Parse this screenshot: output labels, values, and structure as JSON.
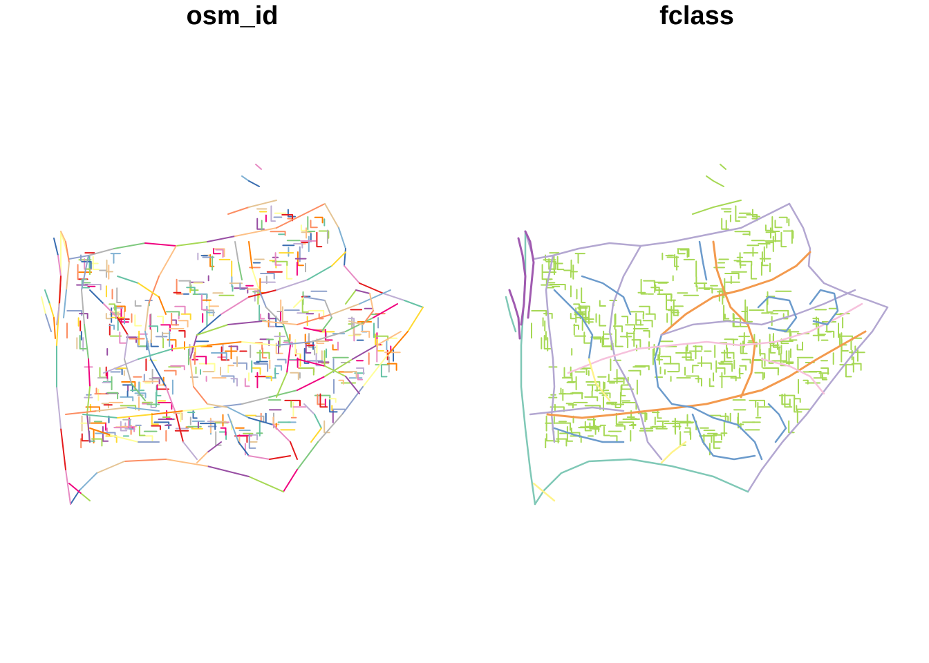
{
  "figure": {
    "panels": [
      {
        "id": "osm_id",
        "title": "osm_id",
        "coloring": "per-feature"
      },
      {
        "id": "fclass",
        "title": "fclass",
        "coloring": "by-class"
      }
    ]
  },
  "palette": {
    "osm_id_colors": [
      "#7fc97f",
      "#beaed4",
      "#fdc086",
      "#ffff99",
      "#386cb0",
      "#f0027f",
      "#66c2a5",
      "#fc8d62",
      "#8da0cb",
      "#e78ac3",
      "#a6d854",
      "#ffd92f",
      "#e5c494",
      "#b3b3b3",
      "#e41a1c",
      "#984ea3",
      "#ff7f00",
      "#80b1d3"
    ],
    "fclass_colors": {
      "residential": "#a6d854",
      "secondary": "#b3a7d1",
      "tertiary": "#6c9bcc",
      "primary": "#f39a4e",
      "trunk": "#a05ab0",
      "motorway": "#7fc8b6",
      "service": "#f6c1dc",
      "unclassified": "#fff38a"
    }
  }
}
